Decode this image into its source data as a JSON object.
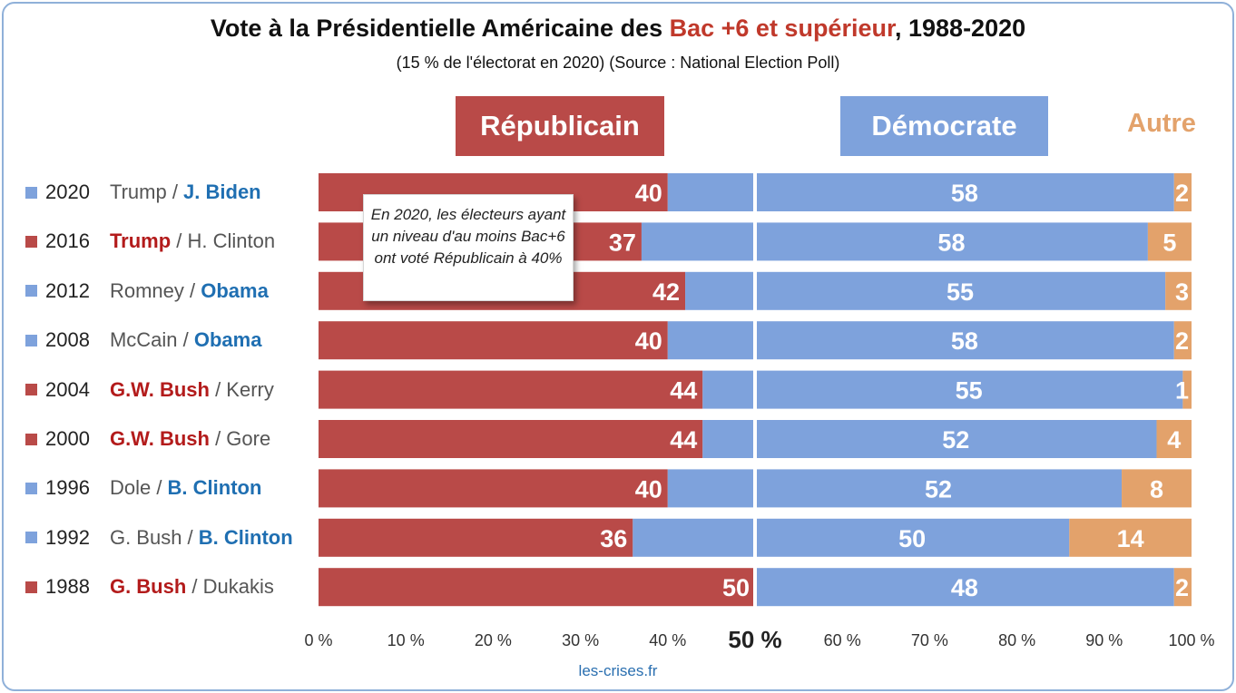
{
  "title": {
    "before": "Vote à la Présidentielle Américaine des ",
    "highlight": "Bac +6 et supérieur",
    "after": ", 1988-2020"
  },
  "subtitle": "(15 % de l'électorat en 2020) (Source : National Election Poll)",
  "headers": {
    "republican": "Républicain",
    "democrat": "Démocrate",
    "other": "Autre"
  },
  "callout": "En 2020, les électeurs ayant un niveau d'au moins Bac+6 ont voté Républicain à 40%",
  "source": "les-crises.fr",
  "colors": {
    "republican": "#b94a48",
    "democrat": "#7ea2dc",
    "other": "#e3a26b",
    "rep_text": "#b31b1b",
    "dem_text": "#1f6fb2"
  },
  "chart_data": {
    "type": "bar",
    "orientation": "horizontal",
    "stacked": true,
    "categories": [
      "2020",
      "2016",
      "2012",
      "2008",
      "2004",
      "2000",
      "1996",
      "1992",
      "1988"
    ],
    "candidates": [
      {
        "republican": "Trump",
        "democrat": "J. Biden",
        "winner": "democrat"
      },
      {
        "republican": "Trump",
        "democrat": "H. Clinton",
        "winner": "republican"
      },
      {
        "republican": "Romney",
        "democrat": "Obama",
        "winner": "democrat"
      },
      {
        "republican": "McCain",
        "democrat": "Obama",
        "winner": "democrat"
      },
      {
        "republican": "G.W. Bush",
        "democrat": "Kerry",
        "winner": "republican"
      },
      {
        "republican": "G.W. Bush",
        "democrat": "Gore",
        "winner": "republican"
      },
      {
        "republican": "Dole",
        "democrat": "B. Clinton",
        "winner": "democrat"
      },
      {
        "republican": "G. Bush",
        "democrat": "B. Clinton",
        "winner": "democrat"
      },
      {
        "republican": "G. Bush",
        "democrat": "Dukakis",
        "winner": "republican"
      }
    ],
    "series": [
      {
        "name": "Républicain",
        "values": [
          40,
          37,
          42,
          40,
          44,
          44,
          40,
          36,
          50
        ]
      },
      {
        "name": "Démocrate",
        "values": [
          58,
          58,
          55,
          58,
          55,
          52,
          52,
          50,
          48
        ]
      },
      {
        "name": "Autre",
        "values": [
          2,
          5,
          3,
          2,
          1,
          4,
          8,
          14,
          2
        ]
      }
    ],
    "xlim": [
      0,
      100
    ],
    "x_ticks": [
      "0 %",
      "10 %",
      "20 %",
      "30 %",
      "40 %",
      "50 %",
      "60 %",
      "70 %",
      "80 %",
      "90 %",
      "100 %"
    ],
    "midline": 50
  }
}
